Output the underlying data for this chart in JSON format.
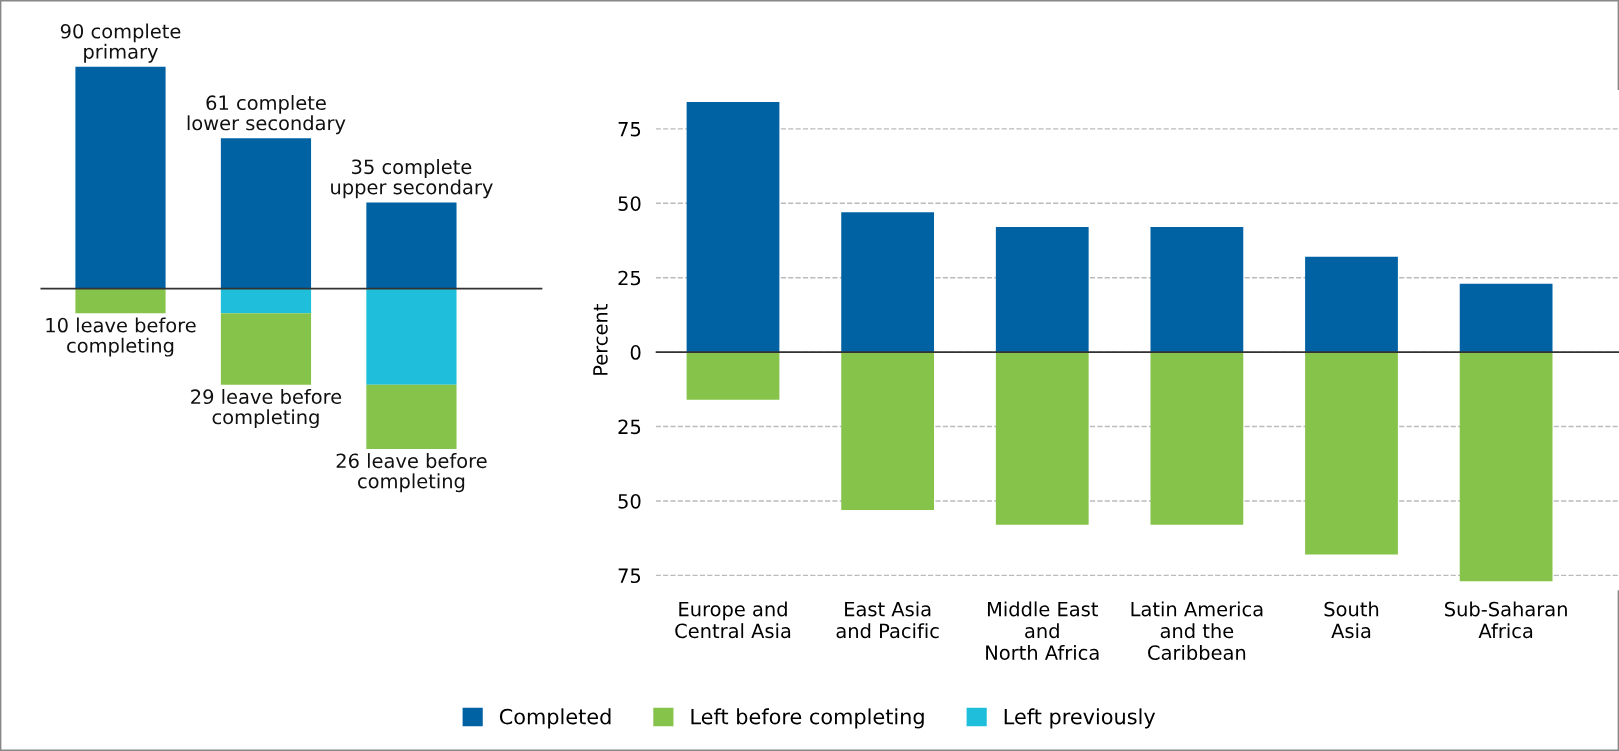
{
  "chart_data": [
    {
      "type": "bar",
      "stacked": true,
      "categories": [
        null,
        null,
        null
      ],
      "legend": "bottom",
      "annotations": [
        "10 leave before\ncompleting",
        "29 leave before\ncompleting",
        "26 leave before\ncompleting"
      ],
      "series": [
        {
          "name": "Completed",
          "color": "#0062a3",
          "values": [
            90,
            61,
            35
          ],
          "value_labels": [
            "90 complete\nprimary",
            "61 complete\nlower secondary",
            "35 complete\nupper secondary"
          ]
        },
        {
          "name": "Left previously",
          "color": "#1fbfdb",
          "values": [
            null,
            -10,
            -39
          ]
        },
        {
          "name": "Left before completing",
          "color": "#86c34a",
          "values": [
            -10,
            -29,
            -26
          ]
        }
      ],
      "ref_lines": [
        {
          "axis": "y",
          "value": 0,
          "color": "#333333"
        }
      ]
    },
    {
      "type": "bar",
      "stacked": true,
      "ylabel": "Percent",
      "categories": [
        "Europe and\nCentral Asia",
        "East Asia\nand Pacific",
        "Middle East\nand\nNorth Africa",
        "Latin America\nand the\nCaribbean",
        "South\nAsia",
        "Sub-Saharan\nAfrica"
      ],
      "ylim": [
        -80,
        88
      ],
      "grid": "y",
      "yticks": [
        {
          "value": -75,
          "label": "75"
        },
        {
          "value": -50,
          "label": "50"
        },
        {
          "value": -25,
          "label": "25"
        },
        0,
        25,
        50,
        75
      ],
      "series": [
        {
          "name": "Completed",
          "color": "#0062a3",
          "values": [
            84,
            47,
            42,
            42,
            32,
            23
          ]
        },
        {
          "name": "Left before completing",
          "color": "#86c34a",
          "values": [
            -16,
            -53,
            -58,
            -58,
            -68,
            -77
          ]
        }
      ],
      "ref_lines": [
        {
          "axis": "y",
          "value": 0,
          "color": "#333333"
        }
      ]
    }
  ]
}
